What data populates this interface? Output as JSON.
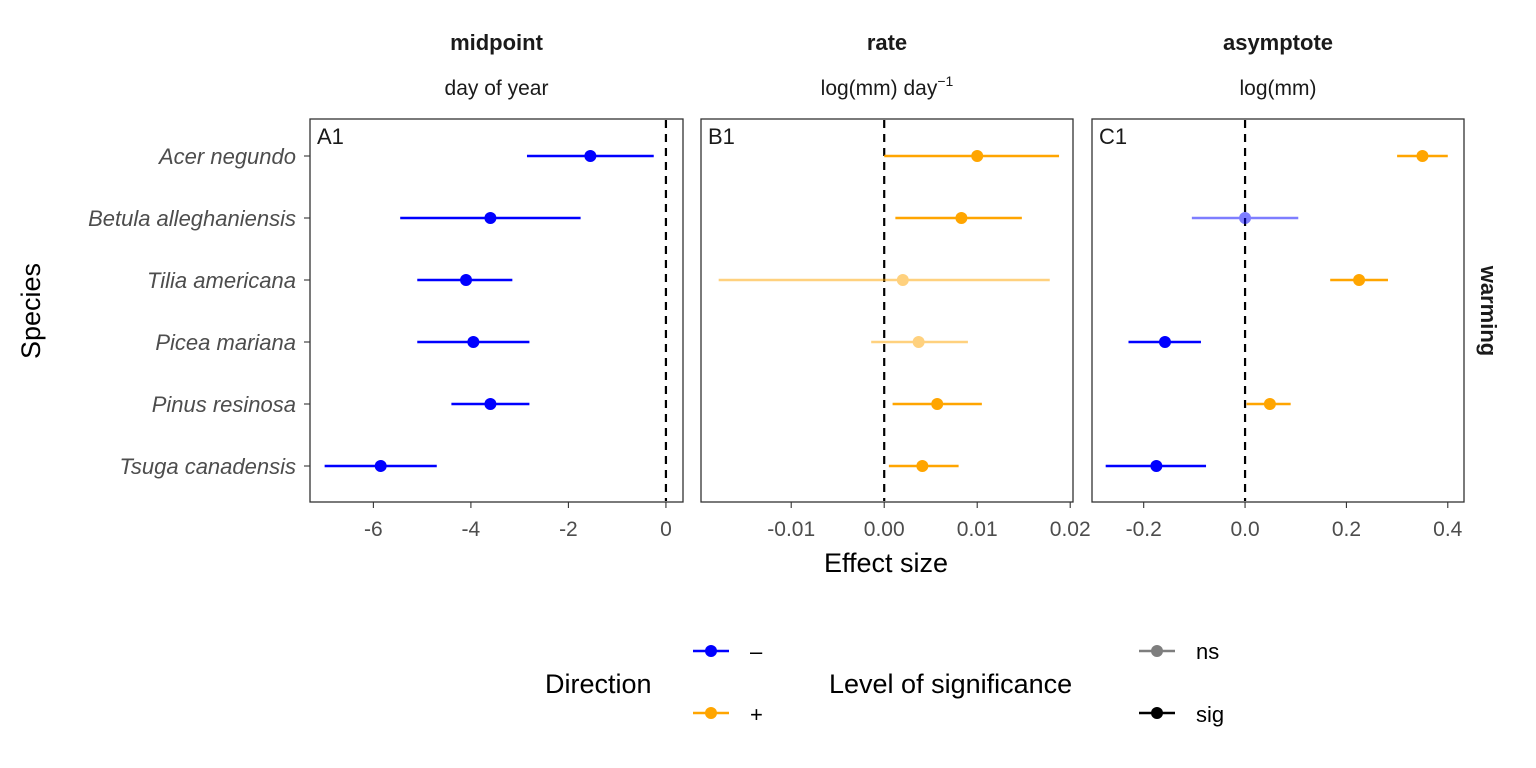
{
  "chart_data": {
    "type": "scatter",
    "subtype": "forest-plot",
    "ylabel": "Species",
    "xlabel": "Effect size",
    "row_strip": "warming",
    "categories": [
      "Acer negundo",
      "Betula alleghaniensis",
      "Tilia americana",
      "Picea mariana",
      "Pinus resinosa",
      "Tsuga canadensis"
    ],
    "colors": {
      "negative": "#0000ff",
      "positive": "#ffa500",
      "reference": "#000000"
    },
    "panels": [
      {
        "tag": "A1",
        "title": "midpoint",
        "subtitle": "day of year",
        "xlim": [
          -7.3,
          0.35
        ],
        "ticks": [
          -6,
          -4,
          -2,
          0
        ],
        "tick_labels": [
          "-6",
          "-4",
          "-2",
          "0"
        ],
        "points": [
          {
            "species": "Acer negundo",
            "est": -1.55,
            "lo": -2.85,
            "hi": -0.25,
            "direction": "-",
            "significance": "sig"
          },
          {
            "species": "Betula alleghaniensis",
            "est": -3.6,
            "lo": -5.45,
            "hi": -1.75,
            "direction": "-",
            "significance": "sig"
          },
          {
            "species": "Tilia americana",
            "est": -4.1,
            "lo": -5.1,
            "hi": -3.15,
            "direction": "-",
            "significance": "sig"
          },
          {
            "species": "Picea mariana",
            "est": -3.95,
            "lo": -5.1,
            "hi": -2.8,
            "direction": "-",
            "significance": "sig"
          },
          {
            "species": "Pinus resinosa",
            "est": -3.6,
            "lo": -4.4,
            "hi": -2.8,
            "direction": "-",
            "significance": "sig"
          },
          {
            "species": "Tsuga canadensis",
            "est": -5.85,
            "lo": -7.0,
            "hi": -4.7,
            "direction": "-",
            "significance": "sig"
          }
        ]
      },
      {
        "tag": "B1",
        "title": "rate",
        "subtitle": "log(mm) day",
        "subtitle_sup": "−1",
        "xlim": [
          -0.0197,
          0.0203
        ],
        "ticks": [
          -0.01,
          0.0,
          0.01,
          0.02
        ],
        "tick_labels": [
          "-0.01",
          "0.00",
          "0.01",
          "0.02"
        ],
        "points": [
          {
            "species": "Acer negundo",
            "est": 0.01,
            "lo": 0.0,
            "hi": 0.0188,
            "direction": "+",
            "significance": "sig"
          },
          {
            "species": "Betula alleghaniensis",
            "est": 0.0083,
            "lo": 0.0012,
            "hi": 0.0148,
            "direction": "+",
            "significance": "sig"
          },
          {
            "species": "Tilia americana",
            "est": 0.002,
            "lo": -0.0178,
            "hi": 0.0178,
            "direction": "+",
            "significance": "ns"
          },
          {
            "species": "Picea mariana",
            "est": 0.0037,
            "lo": -0.0014,
            "hi": 0.009,
            "direction": "+",
            "significance": "ns"
          },
          {
            "species": "Pinus resinosa",
            "est": 0.0057,
            "lo": 0.0009,
            "hi": 0.0105,
            "direction": "+",
            "significance": "sig"
          },
          {
            "species": "Tsuga canadensis",
            "est": 0.0041,
            "lo": 0.0005,
            "hi": 0.008,
            "direction": "+",
            "significance": "sig"
          }
        ]
      },
      {
        "tag": "C1",
        "title": "asymptote",
        "subtitle": "log(mm)",
        "xlim": [
          -0.302,
          0.432
        ],
        "ticks": [
          -0.2,
          0.0,
          0.2,
          0.4
        ],
        "tick_labels": [
          "-0.2",
          "0.0",
          "0.2",
          "0.4"
        ],
        "points": [
          {
            "species": "Acer negundo",
            "est": 0.35,
            "lo": 0.3,
            "hi": 0.4,
            "direction": "+",
            "significance": "sig"
          },
          {
            "species": "Betula alleghaniensis",
            "est": 0.0,
            "lo": -0.105,
            "hi": 0.105,
            "direction": "-",
            "significance": "ns"
          },
          {
            "species": "Tilia americana",
            "est": 0.225,
            "lo": 0.168,
            "hi": 0.282,
            "direction": "+",
            "significance": "sig"
          },
          {
            "species": "Picea mariana",
            "est": -0.158,
            "lo": -0.23,
            "hi": -0.087,
            "direction": "-",
            "significance": "sig"
          },
          {
            "species": "Pinus resinosa",
            "est": 0.049,
            "lo": 0.003,
            "hi": 0.09,
            "direction": "+",
            "significance": "sig"
          },
          {
            "species": "Tsuga canadensis",
            "est": -0.175,
            "lo": -0.275,
            "hi": -0.077,
            "direction": "-",
            "significance": "sig"
          }
        ]
      }
    ],
    "legend": {
      "position": "bottom",
      "direction": {
        "title": "Direction",
        "items": [
          {
            "label": "–",
            "color": "#0000ff"
          },
          {
            "label": "+",
            "color": "#ffa500"
          }
        ]
      },
      "significance": {
        "title": "Level of significance",
        "items": [
          {
            "label": "ns",
            "alpha": 0.5
          },
          {
            "label": "sig",
            "alpha": 1.0
          }
        ]
      }
    }
  }
}
